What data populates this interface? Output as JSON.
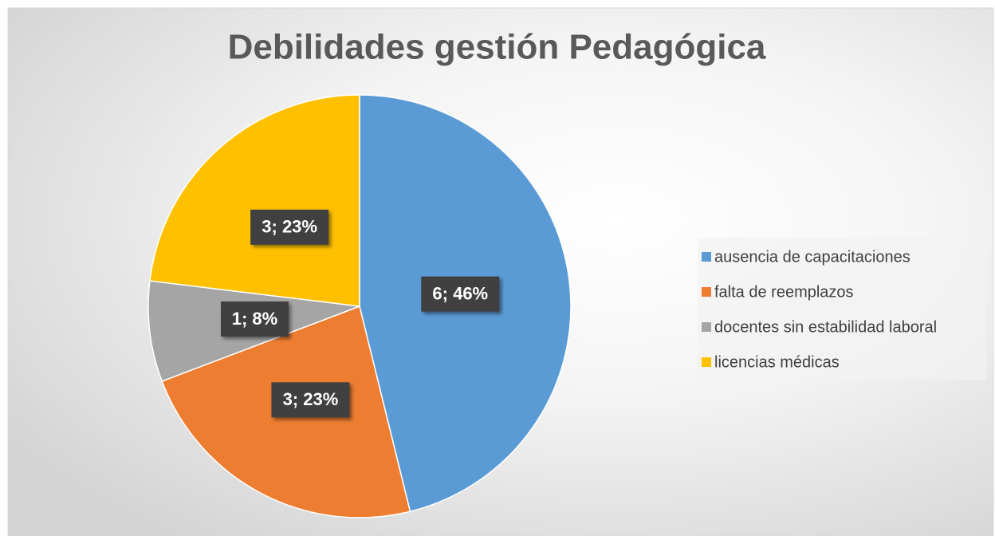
{
  "chart_data": {
    "type": "pie",
    "title": "Debilidades gestión Pedagógica",
    "categories": [
      "ausencia de capacitaciones",
      "falta de reemplazos",
      "docentes sin estabilidad laboral",
      "licencias médicas"
    ],
    "values": [
      6,
      3,
      1,
      3
    ],
    "value_labels": [
      "6; 46%",
      "3; 23%",
      "1; 8%",
      "3; 23%"
    ],
    "colors": [
      "#5b9bd5",
      "#ed7d31",
      "#a5a5a5",
      "#ffc000"
    ],
    "legend": "right"
  }
}
